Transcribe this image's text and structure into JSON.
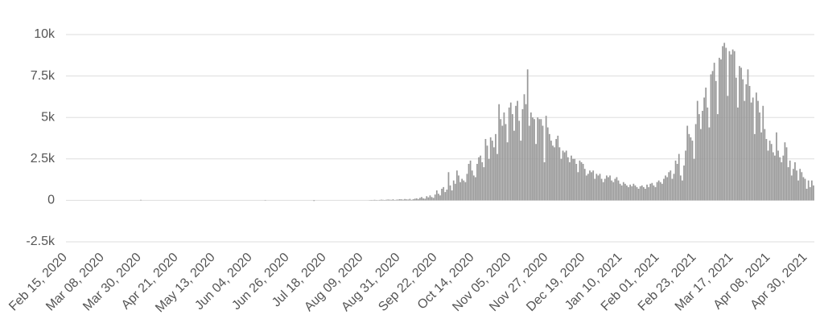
{
  "chart_data": {
    "type": "bar",
    "color": "#999999",
    "grid": true,
    "ylim": [
      -2500,
      10000
    ],
    "yticks": [
      {
        "value": -2500,
        "label": "-2.5k"
      },
      0,
      {
        "value": 2500,
        "label": "2.5k"
      },
      {
        "value": 5000,
        "label": "5k"
      },
      {
        "value": 7500,
        "label": "7.5k"
      },
      {
        "value": 10000,
        "label": "10k"
      }
    ],
    "categories": [
      "Feb 15, 2020",
      null,
      null,
      null,
      null,
      null,
      null,
      null,
      null,
      null,
      null,
      null,
      null,
      null,
      null,
      null,
      null,
      null,
      null,
      null,
      null,
      null,
      "Mar 08, 2020",
      null,
      null,
      null,
      null,
      null,
      null,
      null,
      null,
      null,
      null,
      null,
      null,
      null,
      null,
      null,
      null,
      null,
      null,
      null,
      null,
      null,
      "Mar 30, 2020",
      null,
      null,
      null,
      null,
      null,
      null,
      null,
      null,
      null,
      null,
      null,
      null,
      null,
      null,
      null,
      null,
      null,
      null,
      null,
      null,
      null,
      "Apr 21, 2020",
      null,
      null,
      null,
      null,
      null,
      null,
      null,
      null,
      null,
      null,
      null,
      null,
      null,
      null,
      null,
      null,
      null,
      null,
      null,
      null,
      null,
      "May 13, 2020",
      null,
      null,
      null,
      null,
      null,
      null,
      null,
      null,
      null,
      null,
      null,
      null,
      null,
      null,
      null,
      null,
      null,
      null,
      null,
      null,
      null,
      "Jun 04, 2020",
      null,
      null,
      null,
      null,
      null,
      null,
      null,
      null,
      null,
      null,
      null,
      null,
      null,
      null,
      null,
      null,
      null,
      null,
      null,
      null,
      null,
      "Jun 26, 2020",
      null,
      null,
      null,
      null,
      null,
      null,
      null,
      null,
      null,
      null,
      null,
      null,
      null,
      null,
      null,
      null,
      null,
      null,
      null,
      null,
      null,
      "Jul 18, 2020",
      null,
      null,
      null,
      null,
      null,
      null,
      null,
      null,
      null,
      null,
      null,
      null,
      null,
      null,
      null,
      null,
      null,
      null,
      null,
      null,
      null,
      "Aug 09, 2020",
      null,
      null,
      null,
      null,
      null,
      null,
      null,
      null,
      null,
      null,
      null,
      null,
      null,
      null,
      null,
      null,
      null,
      null,
      null,
      null,
      null,
      "Aug 31, 2020",
      null,
      null,
      null,
      null,
      null,
      null,
      null,
      null,
      null,
      null,
      null,
      null,
      null,
      null,
      null,
      null,
      null,
      null,
      null,
      null,
      null,
      "Sep 22, 2020",
      null,
      null,
      null,
      null,
      null,
      null,
      null,
      null,
      null,
      null,
      null,
      null,
      null,
      null,
      null,
      null,
      null,
      null,
      null,
      null,
      null,
      "Oct 14, 2020",
      null,
      null,
      null,
      null,
      null,
      null,
      null,
      null,
      null,
      null,
      null,
      null,
      null,
      null,
      null,
      null,
      null,
      null,
      null,
      null,
      null,
      "Nov 05, 2020",
      null,
      null,
      null,
      null,
      null,
      null,
      null,
      null,
      null,
      null,
      null,
      null,
      null,
      null,
      null,
      null,
      null,
      null,
      null,
      null,
      null,
      "Nov 27, 2020",
      null,
      null,
      null,
      null,
      null,
      null,
      null,
      null,
      null,
      null,
      null,
      null,
      null,
      null,
      null,
      null,
      null,
      null,
      null,
      null,
      null,
      "Dec 19, 2020",
      null,
      null,
      null,
      null,
      null,
      null,
      null,
      null,
      null,
      null,
      null,
      null,
      null,
      null,
      null,
      null,
      null,
      null,
      null,
      null,
      null,
      "Jan 10, 2021",
      null,
      null,
      null,
      null,
      null,
      null,
      null,
      null,
      null,
      null,
      null,
      null,
      null,
      null,
      null,
      null,
      null,
      null,
      null,
      null,
      null,
      "Feb 01, 2021",
      null,
      null,
      null,
      null,
      null,
      null,
      null,
      null,
      null,
      null,
      null,
      null,
      null,
      null,
      null,
      null,
      null,
      null,
      null,
      null,
      null,
      "Feb 23, 2021",
      null,
      null,
      null,
      null,
      null,
      null,
      null,
      null,
      null,
      null,
      null,
      null,
      null,
      null,
      null,
      null,
      null,
      null,
      null,
      null,
      null,
      "Mar 17, 2021",
      null,
      null,
      null,
      null,
      null,
      null,
      null,
      null,
      null,
      null,
      null,
      null,
      null,
      null,
      null,
      null,
      null,
      null,
      null,
      null,
      null,
      "Apr 08, 2021",
      null,
      null,
      null,
      null,
      null,
      null,
      null,
      null,
      null,
      null,
      null,
      null,
      null,
      null,
      null,
      null,
      null,
      null,
      null,
      null,
      null,
      "Apr 30, 2021",
      null,
      null,
      null,
      null
    ],
    "values": [
      0,
      0,
      0,
      0,
      0,
      0,
      0,
      0,
      0,
      0,
      0,
      0,
      0,
      0,
      0,
      0,
      0,
      0,
      0,
      0,
      0,
      0,
      0,
      0,
      0,
      0,
      0,
      0,
      0,
      0,
      0,
      0,
      0,
      0,
      0,
      0,
      0,
      0,
      0,
      0,
      0,
      0,
      0,
      0,
      30,
      0,
      0,
      0,
      0,
      0,
      0,
      0,
      0,
      0,
      0,
      0,
      0,
      0,
      0,
      0,
      0,
      0,
      0,
      0,
      0,
      0,
      0,
      0,
      0,
      0,
      0,
      0,
      0,
      0,
      0,
      0,
      0,
      0,
      0,
      0,
      0,
      0,
      0,
      0,
      0,
      0,
      0,
      0,
      0,
      0,
      0,
      0,
      0,
      0,
      0,
      0,
      0,
      0,
      0,
      0,
      0,
      0,
      0,
      0,
      0,
      0,
      0,
      0,
      0,
      0,
      0,
      0,
      0,
      0,
      0,
      0,
      0,
      0,
      20,
      0,
      0,
      0,
      0,
      0,
      0,
      0,
      0,
      0,
      0,
      0,
      0,
      0,
      0,
      0,
      0,
      0,
      0,
      0,
      0,
      0,
      0,
      0,
      0,
      0,
      0,
      0,
      0,
      -40,
      0,
      0,
      0,
      0,
      0,
      0,
      0,
      0,
      0,
      0,
      0,
      0,
      0,
      0,
      0,
      0,
      0,
      0,
      0,
      0,
      0,
      0,
      0,
      0,
      0,
      0,
      0,
      0,
      0,
      0,
      0,
      0,
      10,
      20,
      15,
      30,
      20,
      10,
      25,
      40,
      30,
      20,
      35,
      50,
      40,
      30,
      60,
      20,
      40,
      50,
      70,
      60,
      40,
      80,
      60,
      50,
      90,
      30,
      70,
      100,
      120,
      80,
      150,
      200,
      120,
      100,
      250,
      180,
      300,
      200,
      150,
      350,
      600,
      400,
      300,
      700,
      800,
      500,
      650,
      1700,
      900,
      600,
      1200,
      1000,
      1800,
      1500,
      1100,
      1300,
      1200,
      1100,
      1600,
      2200,
      2400,
      1800,
      1500,
      1400,
      2200,
      2600,
      2700,
      2300,
      2000,
      3700,
      3300,
      2500,
      3800,
      3600,
      3200,
      4000,
      2800,
      5800,
      4900,
      4500,
      5300,
      4600,
      3500,
      5600,
      5900,
      5200,
      4200,
      5700,
      6000,
      4800,
      3600,
      5500,
      6400,
      5800,
      7900,
      4500,
      5300,
      5000,
      4900,
      3400,
      5000,
      4900,
      4900,
      4500,
      2300,
      5100,
      4400,
      4000,
      3600,
      3300,
      3200,
      3700,
      3900,
      3200,
      2500,
      3000,
      2900,
      3000,
      2600,
      2300,
      2700,
      2500,
      2500,
      2200,
      1700,
      2400,
      2300,
      2200,
      1900,
      1500,
      1600,
      1800,
      1700,
      1800,
      1300,
      1600,
      1500,
      1600,
      1300,
      1100,
      1300,
      1500,
      1400,
      1500,
      1200,
      1100,
      1300,
      1400,
      1200,
      1000,
      900,
      1100,
      1000,
      900,
      800,
      950,
      850,
      1000,
      900,
      800,
      700,
      850,
      900,
      800,
      700,
      950,
      800,
      1000,
      1050,
      900,
      800,
      1100,
      1200,
      1100,
      1000,
      1300,
      1500,
      1400,
      1700,
      1800,
      1300,
      1600,
      2400,
      2200,
      2800,
      1500,
      1200,
      2100,
      3000,
      4500,
      4000,
      3800,
      3600,
      2500,
      4600,
      6000,
      5200,
      4300,
      5400,
      6200,
      6800,
      5600,
      4400,
      7600,
      7800,
      8300,
      7200,
      5200,
      8600,
      8500,
      9300,
      9500,
      9200,
      6300,
      9000,
      8800,
      9100,
      9000,
      7400,
      5600,
      8100,
      8000,
      7300,
      6000,
      7000,
      7900,
      6900,
      5900,
      6200,
      4000,
      6500,
      6000,
      5300,
      4100,
      5700,
      4300,
      3700,
      3000,
      3600,
      3400,
      2900,
      2700,
      4100,
      3000,
      2600,
      2300,
      2700,
      3500,
      3200,
      2000,
      2400,
      1500,
      1900,
      2300,
      1800,
      1200,
      1900,
      1700,
      1400,
      1300,
      700,
      1200,
      800,
      1200,
      900
    ]
  }
}
